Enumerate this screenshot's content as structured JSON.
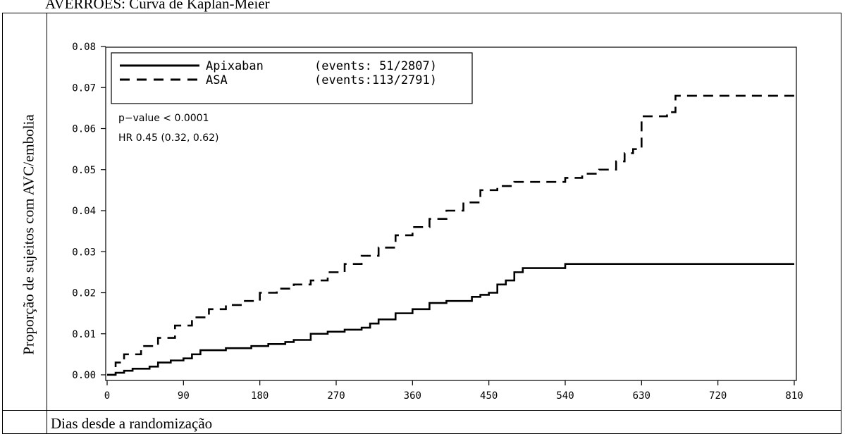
{
  "page": {
    "caption": "AVERROES: Curva de Kaplan-Meier",
    "ylabel": "Proporção de sujeitos com AVC/embolia",
    "xlabel": "Dias desde a randomização"
  },
  "chart_data": {
    "type": "line",
    "xlim": [
      0,
      810
    ],
    "ylim": [
      0,
      0.08
    ],
    "x_ticks": [
      "0",
      "90",
      "180",
      "270",
      "360",
      "450",
      "540",
      "630",
      "720",
      "810"
    ],
    "y_ticks": [
      "0.00",
      "0.01",
      "0.02",
      "0.03",
      "0.04",
      "0.05",
      "0.06",
      "0.07",
      "0.08"
    ],
    "legend_position": "top-left",
    "annotations": [
      "p−value < 0.0001",
      "HR 0.45 (0.32, 0.62)"
    ],
    "series": [
      {
        "name": "Apixaban",
        "legend_detail": "(events: 51/2807)",
        "line_style": "solid",
        "color": "#000000",
        "x": [
          0,
          10,
          20,
          30,
          50,
          60,
          75,
          90,
          100,
          110,
          140,
          170,
          190,
          210,
          220,
          240,
          260,
          280,
          300,
          310,
          320,
          340,
          360,
          380,
          400,
          430,
          440,
          450,
          460,
          470,
          480,
          490,
          540,
          810
        ],
        "y": [
          0,
          0.0005,
          0.001,
          0.0015,
          0.002,
          0.003,
          0.0035,
          0.004,
          0.005,
          0.006,
          0.0065,
          0.007,
          0.0075,
          0.008,
          0.0085,
          0.01,
          0.0105,
          0.011,
          0.0115,
          0.0125,
          0.0135,
          0.015,
          0.016,
          0.0175,
          0.018,
          0.019,
          0.0195,
          0.02,
          0.022,
          0.023,
          0.025,
          0.026,
          0.027,
          0.027
        ]
      },
      {
        "name": "ASA",
        "legend_detail": "(events:113/2791)",
        "line_style": "dashed",
        "color": "#000000",
        "x": [
          0,
          10,
          20,
          40,
          60,
          80,
          100,
          120,
          140,
          160,
          180,
          200,
          220,
          240,
          260,
          280,
          300,
          320,
          340,
          360,
          380,
          400,
          420,
          440,
          460,
          480,
          500,
          520,
          540,
          560,
          580,
          600,
          610,
          620,
          630,
          660,
          670,
          810
        ],
        "y": [
          0,
          0.003,
          0.005,
          0.007,
          0.009,
          0.012,
          0.014,
          0.016,
          0.017,
          0.018,
          0.02,
          0.021,
          0.022,
          0.023,
          0.025,
          0.027,
          0.029,
          0.031,
          0.034,
          0.036,
          0.038,
          0.04,
          0.042,
          0.045,
          0.046,
          0.047,
          0.047,
          0.047,
          0.048,
          0.049,
          0.05,
          0.052,
          0.054,
          0.055,
          0.063,
          0.064,
          0.068,
          0.068
        ]
      }
    ]
  }
}
